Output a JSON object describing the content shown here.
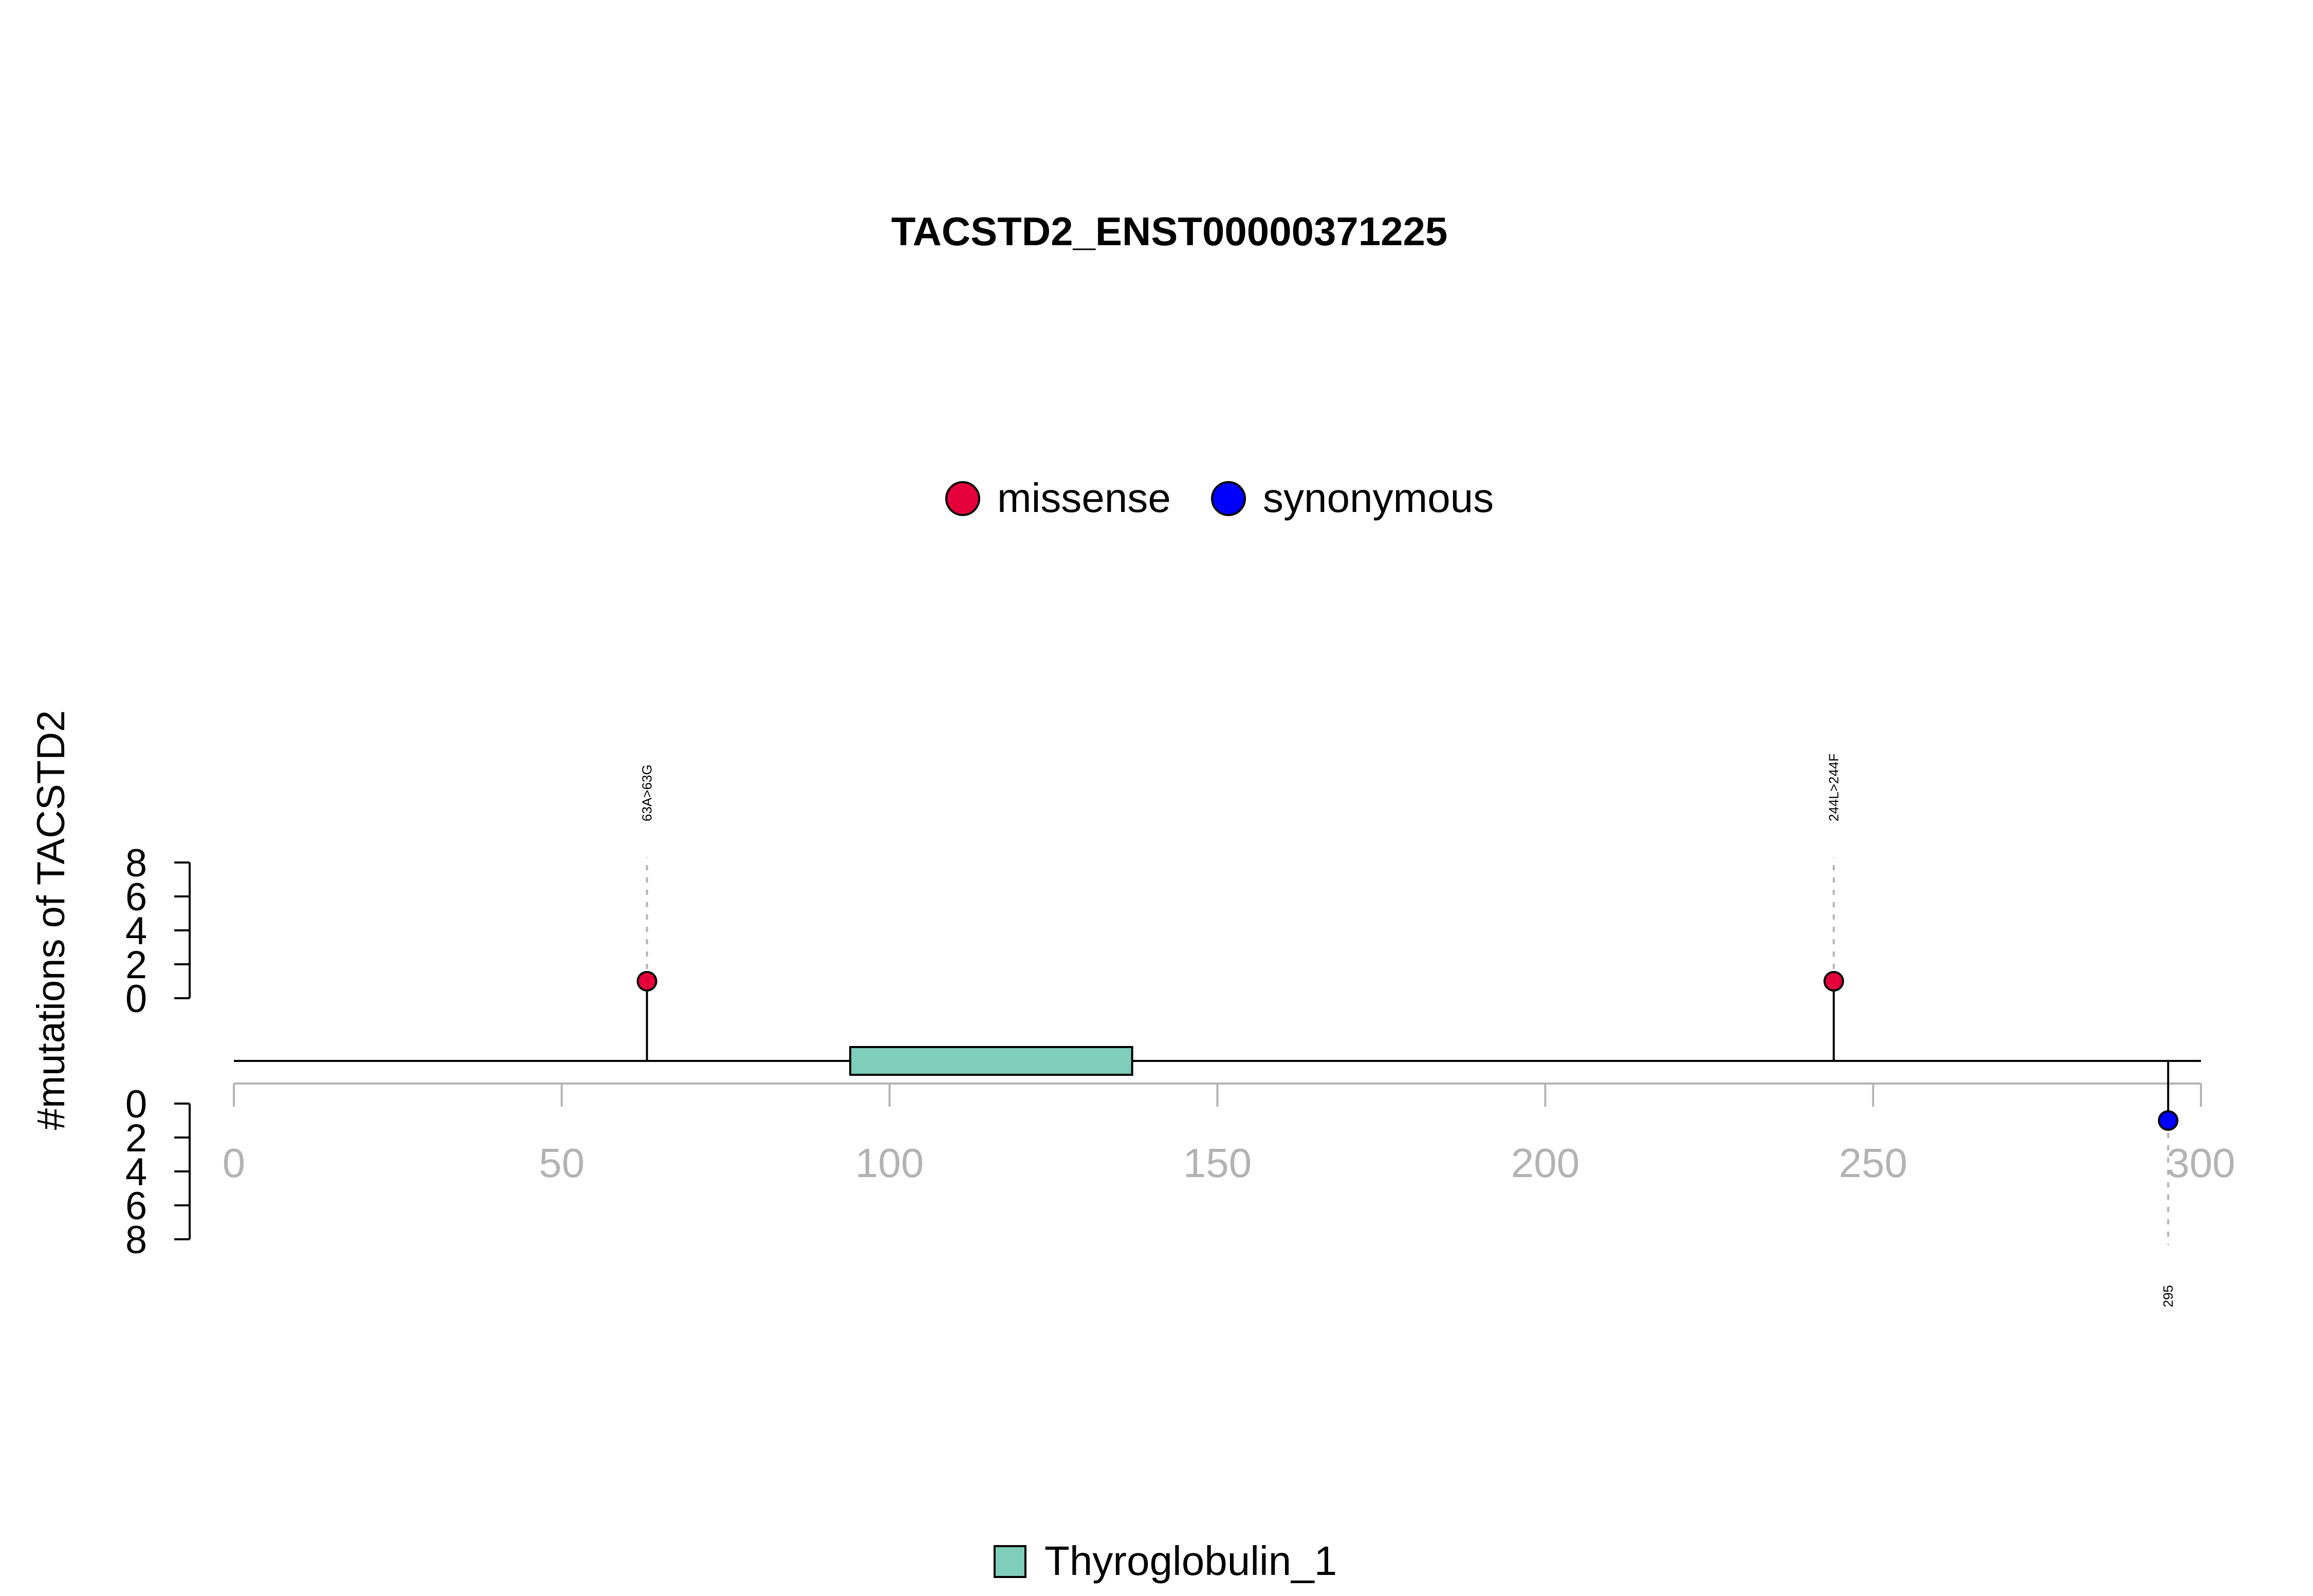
{
  "chart_data": {
    "type": "lollipop",
    "title": "TACSTD2_ENST00000371225",
    "ylabel": "#mutations of TACSTD2",
    "xlim": [
      0,
      300
    ],
    "x_ticks": [
      0,
      50,
      100,
      150,
      200,
      250,
      300
    ],
    "ylim": [
      0,
      8
    ],
    "y_ticks": [
      0,
      2,
      4,
      6,
      8
    ],
    "protein_length": 300,
    "legend_top": [
      {
        "label": "missense",
        "color": "#E4003A"
      },
      {
        "label": "synonymous",
        "color": "#0000FF"
      }
    ],
    "legend_bottom": [
      {
        "label": "Thyroglobulin_1",
        "color": "#7FCDBB"
      }
    ],
    "domains": [
      {
        "name": "Thyroglobulin_1",
        "start": 94,
        "end": 137,
        "color": "#7FCDBB"
      }
    ],
    "mutations": [
      {
        "position": 63,
        "count": 1,
        "type": "missense",
        "label": "63A>63G",
        "side": "top"
      },
      {
        "position": 244,
        "count": 1,
        "type": "missense",
        "label": "244L>244F",
        "side": "top"
      },
      {
        "position": 295,
        "count": 1,
        "type": "synonymous",
        "label": "295",
        "side": "bottom"
      }
    ],
    "colors": {
      "missense": "#E4003A",
      "synonymous": "#0000FF",
      "axis": "#B3B3B3",
      "axis_label": "#B3B3B3"
    }
  }
}
